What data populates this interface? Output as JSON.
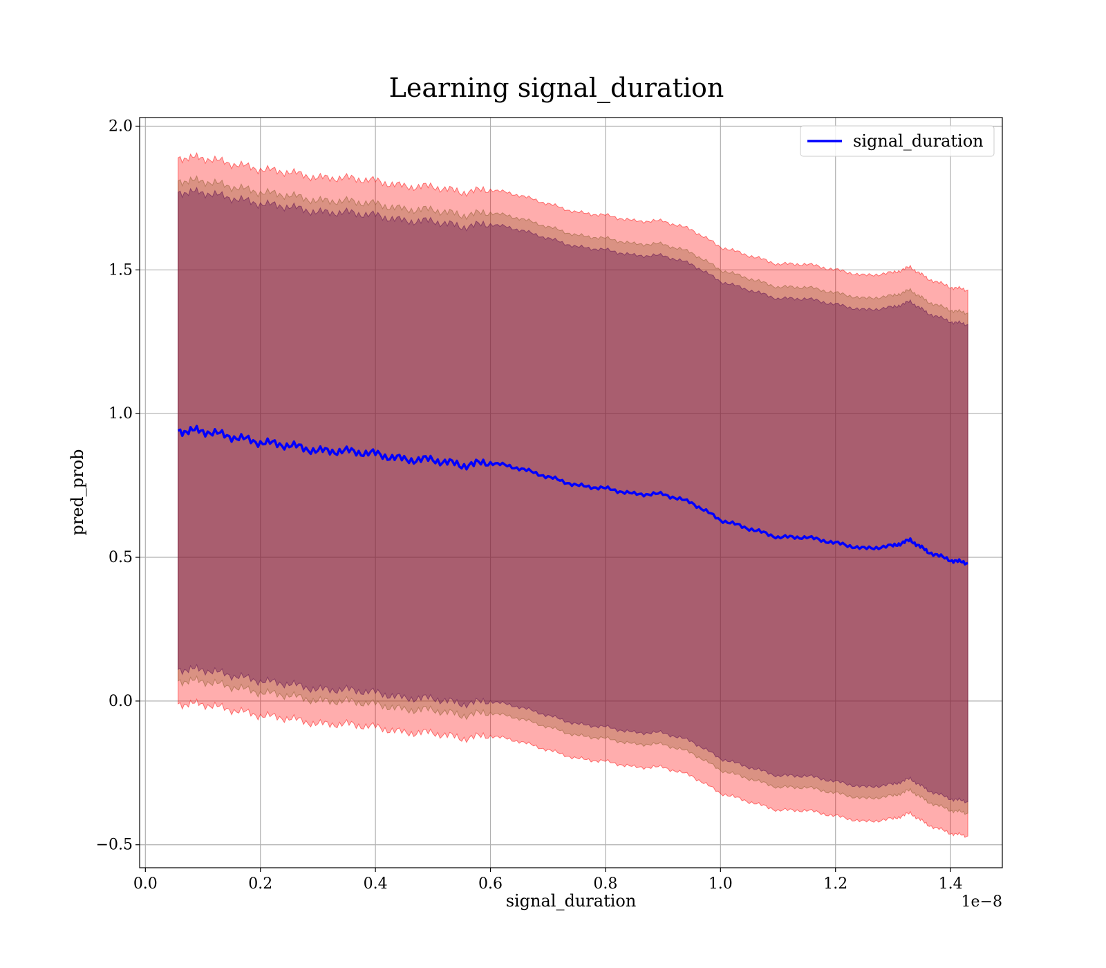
{
  "chart_data": {
    "type": "line",
    "title": "Learning signal_duration",
    "xlabel": "signal_duration",
    "ylabel": "pred_prob",
    "x_scale_label": "1e−8",
    "xlim": [
      -0.01,
      1.49
    ],
    "ylim": [
      -0.58,
      2.03
    ],
    "x_ticks": [
      0.0,
      0.2,
      0.4,
      0.6,
      0.8,
      1.0,
      1.2,
      1.4
    ],
    "x_tick_labels": [
      "0.0",
      "0.2",
      "0.4",
      "0.6",
      "0.8",
      "1.0",
      "1.2",
      "1.4"
    ],
    "y_ticks": [
      -0.5,
      0.0,
      0.5,
      1.0,
      1.5,
      2.0
    ],
    "y_tick_labels": [
      "−0.5",
      "0.0",
      "0.5",
      "1.0",
      "1.5",
      "2.0"
    ],
    "grid": true,
    "legend_position": "top-right",
    "x": [
      0.057,
      0.1,
      0.15,
      0.2,
      0.25,
      0.3,
      0.35,
      0.4,
      0.45,
      0.5,
      0.55,
      0.6,
      0.65,
      0.7,
      0.75,
      0.8,
      0.85,
      0.9,
      0.95,
      1.0,
      1.05,
      1.1,
      1.15,
      1.2,
      1.25,
      1.3,
      1.33,
      1.36,
      1.4,
      1.43
    ],
    "series": [
      {
        "name": "signal_duration",
        "color": "#0000ff",
        "values": [
          0.94,
          0.94,
          0.92,
          0.9,
          0.89,
          0.87,
          0.87,
          0.86,
          0.84,
          0.84,
          0.82,
          0.83,
          0.81,
          0.78,
          0.75,
          0.74,
          0.72,
          0.72,
          0.69,
          0.63,
          0.6,
          0.57,
          0.57,
          0.55,
          0.53,
          0.54,
          0.56,
          0.52,
          0.49,
          0.48
        ]
      }
    ],
    "bands": [
      {
        "color": "#ff0000",
        "opacity": 0.32,
        "sigma": 0.95
      },
      {
        "color": "#8b5a2b",
        "opacity": 0.32,
        "sigma": 0.87
      },
      {
        "color": "#5a0a50",
        "opacity": 0.38,
        "sigma": 0.83
      }
    ]
  }
}
